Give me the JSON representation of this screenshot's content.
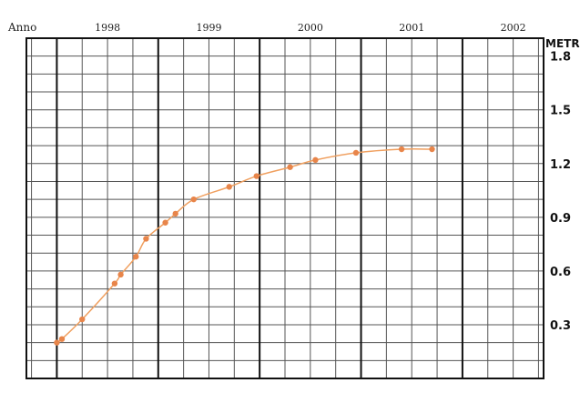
{
  "chart_data": {
    "type": "line",
    "title": "",
    "xlabel": "Anno",
    "ylabel": "METRI",
    "x_ticks": [
      "1998",
      "1999",
      "2000",
      "2001",
      "2002"
    ],
    "y_ticks": [
      "1.8",
      "1.5",
      "1.2",
      "0.9",
      "0.6",
      "0.3"
    ],
    "y_tick_values": [
      1.8,
      1.5,
      1.2,
      0.9,
      0.6,
      0.3
    ],
    "xlim": [
      1997.7,
      2002.8
    ],
    "ylim": [
      0.0,
      1.9
    ],
    "grid": true,
    "colors": {
      "series": "#f0a060",
      "marker": "#e8854a",
      "grid_minor": "#555555",
      "grid_major": "#111111"
    },
    "series": [
      {
        "x": [
          1998.0,
          1998.05,
          1998.25,
          1998.57,
          1998.63,
          1998.78,
          1998.88,
          1999.07,
          1999.17,
          1999.35,
          1999.7,
          1999.97,
          2000.3,
          2000.55,
          2000.95,
          2001.4,
          2001.7
        ],
        "y": [
          0.2,
          0.22,
          0.33,
          0.53,
          0.58,
          0.68,
          0.78,
          0.87,
          0.92,
          1.0,
          1.07,
          1.13,
          1.18,
          1.22,
          1.26,
          1.28,
          1.28
        ]
      }
    ]
  }
}
